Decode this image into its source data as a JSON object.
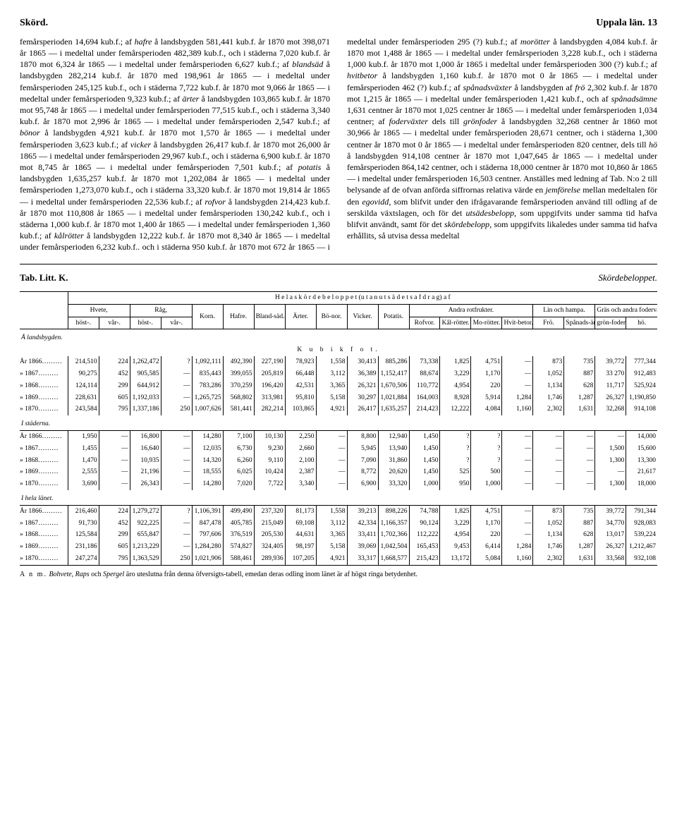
{
  "header": {
    "left": "Skörd.",
    "right": "Uppala län.   13"
  },
  "body": {
    "text": "femårsperioden 14,694 kub.f.; af <em>hafre</em> å landsbygden 581,441 kub.f. år 1870 mot 398,071 år 1865 — i medeltal under femårsperioden 482,389 kub.f., och i städerna 7,020 kub.f. år 1870 mot 6,324 år 1865 — i medeltal under femårsperioden 6,627 kub.f.; af <em>blandsäd</em> å landsbygden 282,214 kub.f. år 1870 med 198,961 år 1865 — i medeltal under femårsperioden 245,125 kub.f., och i städerna 7,722 kub.f. år 1870 mot 9,066 år 1865 — i medeltal under femårsperioden 9,323 kub.f.; af <em>ärter</em> å landsbygden 103,865 kub.f. år 1870 mot 95,748 år 1865 — i medeltal under femårsperioden 77,515 kub.f., och i städerna 3,340 kub.f. år 1870 mot 2,996 år 1865 — i medeltal under femårsperioden 2,547 kub.f.; af <em>bönor</em> å landsbygden 4,921 kub.f. år 1870 mot 1,570 år 1865 — i medeltal under femårsperioden 3,623 kub.f.; af <em>vicker</em> å landsbygden 26,417 kub.f. år 1870 mot 26,000 år 1865 — i medeltal under femårsperioden 29,967 kub.f., och i städerna 6,900 kub.f. år 1870 mot 8,745 år 1865 — i medeltal under femårsperioden 7,501 kub.f.; af <em>potatis</em> å landsbygden 1,635,257 kub.f. år 1870 mot 1,202,084 år 1865 — i medeltal under femårsperioden 1,273,070 kub.f., och i städerna 33,320 kub.f. år 1870 mot 19,814 år 1865 — i medeltal under femårsperioden 22,536 kub.f.; af <em>rofvor</em> å landsbygden 214,423 kub.f. år 1870 mot 110,808 år 1865 — i medeltal under femårsperioden 130,242 kub.f., och i städerna 1,000 kub.f. år 1870 mot 1,400 år 1865 — i medeltal under femårsperioden 1,360 kub.f.; af <em>kålrötter</em> å landsbygden 12,222 kub.f. år 1870 mot 8,340 år 1865 — i medeltal under femårsperioden 6,232 kub.f.. och i städerna 950 kub.f. år 1870 mot 672 år 1865 — i medeltal under femårsperioden 295 (?) kub.f.; af <em>morötter</em> å landsbygden 4,084 kub.f. år 1870 mot 1,488 år 1865 — i medeltal under femårsperioden 3,228 kub.f., och i städerna 1,000 kub.f. år 1870 mot 1,000 år 1865 i medeltal under femårsperioden 300 (?) kub.f.; af <em>hvitbetor</em> å landsbygden 1,160 kub.f. år 1870 mot 0 år 1865 — i medeltal under femårsperioden 462 (?) kub.f.; af <em>spånadsväxter</em> å landsbygden af <em>frö</em> 2,302 kub.f. år 1870 mot 1,215 år 1865 — i medeltal under femårsperioden 1,421 kub.f., och af <em>spånadsämne</em> 1,631 centner år 1870 mot 1,025 centner år 1865 — i medeltal under femårsperioden 1,034 centner; af <em>foderväxter</em> dels till <em>grönfoder</em> å landsbygden 32,268 centner år 1860 mot 30,966 år 1865 — i medeltal under femårsperioden 28,671 centner, och i städerna 1,300 centner år 1870 mot 0 år 1865 — i medeltal under femårsperioden 820 centner, dels till <em>hö</em> å landsbygden 914,108 centner år 1870 mot 1,047,645 år 1865 — i medeltal under femårsperioden 864,142 centner, och i städerna 18,000 centner år 1870 mot 10,860 år 1865 — i medeltal under femårsperioden 16,503 centner.    Anställes med ledning af Tab. N:o 2 till belysande af de ofvan anförda siffrornas relativa värde en <em>jemförelse</em> mellan medeltalen för den <em>egovidd</em>, som blifvit under den ifrågavarande femårsperioden använd till odling af de serskilda växtslagen, och för det <em>utsädesbelopp</em>, som uppgifvits under samma tid hafva blifvit användt, samt för det <em>skördebelopp</em>, som uppgifvits likaledes under samma tid hafva erhållits, så utvisa dessa medeltal"
  },
  "tab": {
    "left": "Tab. Litt. K.",
    "right": "Skördebeloppet."
  },
  "table": {
    "superhead": "H e l a   s k ö r d e b e l o p p e t   (u t a n   u t s ä d e t s   a f d r a g)   a f",
    "groups": {
      "hvete": "Hvete,",
      "rag": "Råg,",
      "korn": "Korn.",
      "hafre": "Hafre.",
      "blandsad": "Bland-säd.",
      "arter": "Ärter.",
      "bonor": "Bö-nor.",
      "vicker": "Vicker.",
      "potatis": "Potatis.",
      "rotfrukter": "Andra rotfrukter.",
      "linhampa": "Lin och hampa.",
      "foder": "Gräs och andra foderväxter till"
    },
    "subs": {
      "host": "höst-.",
      "var": "vår-.",
      "rofvor": "Rofvor.",
      "kalrotter": "Kål-rötter.",
      "morotter": "Mo-rötter.",
      "hvitbetor": "Hvit-betor.",
      "fro": "Frö.",
      "spanadsamne": "Spånads-ämne.",
      "gronfoder": "grön-foder.",
      "ho": "hö."
    },
    "unitrow": "K   u   b   i   k   f   o   t.",
    "sections": [
      {
        "name": "Å landsbygden.",
        "rows": [
          {
            "label": "År 1866………",
            "cells": [
              "214,510",
              "224",
              "1,262,472",
              "?",
              "1,092,111",
              "492,390",
              "227,190",
              "78,923",
              "1,558",
              "30,413",
              "885,286",
              "73,338",
              "1,825",
              "4,751",
              "—",
              "873",
              "735",
              "39,772",
              "777,344"
            ]
          },
          {
            "label": "»  1867………",
            "cells": [
              "90,275",
              "452",
              "905,585",
              "—",
              "835,443",
              "399,055",
              "205,819",
              "66,448",
              "3,112",
              "36,389",
              "1,152,417",
              "88,674",
              "3,229",
              "1,170",
              "—",
              "1,052",
              "887",
              "33 270",
              "912,483"
            ]
          },
          {
            "label": "»  1868………",
            "cells": [
              "124,114",
              "299",
              "644,912",
              "—",
              "783,286",
              "370,259",
              "196,420",
              "42,531",
              "3,365",
              "26,321",
              "1,670,506",
              "110,772",
              "4,954",
              "220",
              "—",
              "1,134",
              "628",
              "11,717",
              "525,924"
            ]
          },
          {
            "label": "»  1869………",
            "cells": [
              "228,631",
              "605",
              "1,192,033",
              "—",
              "1,265,725",
              "568,802",
              "313,981",
              "95,810",
              "5,158",
              "30,297",
              "1,021,884",
              "164,003",
              "8,928",
              "5,914",
              "1,284",
              "1,746",
              "1,287",
              "26,327",
              "1,190,850"
            ]
          },
          {
            "label": "»  1870………",
            "cells": [
              "243,584",
              "795",
              "1,337,186",
              "250",
              "1,007,626",
              "581,441",
              "282,214",
              "103,865",
              "4,921",
              "26,417",
              "1,635,257",
              "214,423",
              "12,222",
              "4,084",
              "1,160",
              "2,302",
              "1,631",
              "32,268",
              "914,108"
            ]
          }
        ]
      },
      {
        "name": "I städerna.",
        "rows": [
          {
            "label": "År 1866………",
            "cells": [
              "1,950",
              "—",
              "16,800",
              "—",
              "14,280",
              "7,100",
              "10,130",
              "2,250",
              "—",
              "8,800",
              "12,940",
              "1,450",
              "?",
              "?",
              "—",
              "—",
              "—",
              "—",
              "14,000"
            ]
          },
          {
            "label": "»  1867………",
            "cells": [
              "1,455",
              "—",
              "16,640",
              "—",
              "12,035",
              "6,730",
              "9,230",
              "2,660",
              "—",
              "5,945",
              "13,940",
              "1,450",
              "?",
              "?",
              "—",
              "—",
              "—",
              "1,500",
              "15,600"
            ]
          },
          {
            "label": "»  1868………",
            "cells": [
              "1,470",
              "—",
              "10,935",
              "—",
              "14,320",
              "6,260",
              "9,110",
              "2,100",
              "—",
              "7,090",
              "31,860",
              "1,450",
              "?",
              "?",
              "—",
              "—",
              "—",
              "1,300",
              "13,300"
            ]
          },
          {
            "label": "»  1869………",
            "cells": [
              "2,555",
              "—",
              "21,196",
              "—",
              "18,555",
              "6,025",
              "10,424",
              "2,387",
              "—",
              "8,772",
              "20,620",
              "1,450",
              "525",
              "500",
              "—",
              "—",
              "—",
              "—",
              "21,617"
            ]
          },
          {
            "label": "»  1870………",
            "cells": [
              "3,690",
              "—",
              "26,343",
              "—",
              "14,280",
              "7,020",
              "7,722",
              "3,340",
              "—",
              "6,900",
              "33,320",
              "1,000",
              "950",
              "1,000",
              "—",
              "—",
              "—",
              "1,300",
              "18,000"
            ]
          }
        ]
      },
      {
        "name": "I hela länet.",
        "rows": [
          {
            "label": "År 1866………",
            "cells": [
              "216,460",
              "224",
              "1,279,272",
              "?",
              "1,106,391",
              "499,490",
              "237,320",
              "81,173",
              "1,558",
              "39,213",
              "898,226",
              "74,788",
              "1,825",
              "4,751",
              "—",
              "873",
              "735",
              "39,772",
              "791,344"
            ]
          },
          {
            "label": "»  1867………",
            "cells": [
              "91,730",
              "452",
              "922,225",
              "—",
              "847,478",
              "405,785",
              "215,049",
              "69,108",
              "3,112",
              "42,334",
              "1,166,357",
              "90,124",
              "3,229",
              "1,170",
              "—",
              "1,052",
              "887",
              "34,770",
              "928,083"
            ]
          },
          {
            "label": "»  1868………",
            "cells": [
              "125,584",
              "299",
              "655,847",
              "—",
              "797,606",
              "376,519",
              "205,530",
              "44,631",
              "3,365",
              "33,411",
              "1,702,366",
              "112,222",
              "4,954",
              "220",
              "—",
              "1,134",
              "628",
              "13,017",
              "539,224"
            ]
          },
          {
            "label": "»  1869………",
            "cells": [
              "231,186",
              "605",
              "1,213,229",
              "—",
              "1,284,280",
              "574,827",
              "324,405",
              "98,197",
              "5,158",
              "39,069",
              "1,042,504",
              "165,453",
              "9,453",
              "6,414",
              "1,284",
              "1,746",
              "1,287",
              "26,327",
              "1,212,467"
            ]
          },
          {
            "label": "»  1870………",
            "cells": [
              "247,274",
              "795",
              "1,363,529",
              "250",
              "1,021,906",
              "588,461",
              "289,936",
              "107,205",
              "4,921",
              "33,317",
              "1,668,577",
              "215,423",
              "13,172",
              "5,084",
              "1,160",
              "2,302",
              "1,631",
              "33,568",
              "932,108"
            ]
          }
        ]
      }
    ]
  },
  "footnote": {
    "lead": "A n m.",
    "text": " <em>Bohvete</em>, <em>Raps</em> och <em>Spergel</em> äro uteslutna från denna öfversigts-tabell, emedan deras odling inom länet är af högst ringa betydenhet."
  }
}
